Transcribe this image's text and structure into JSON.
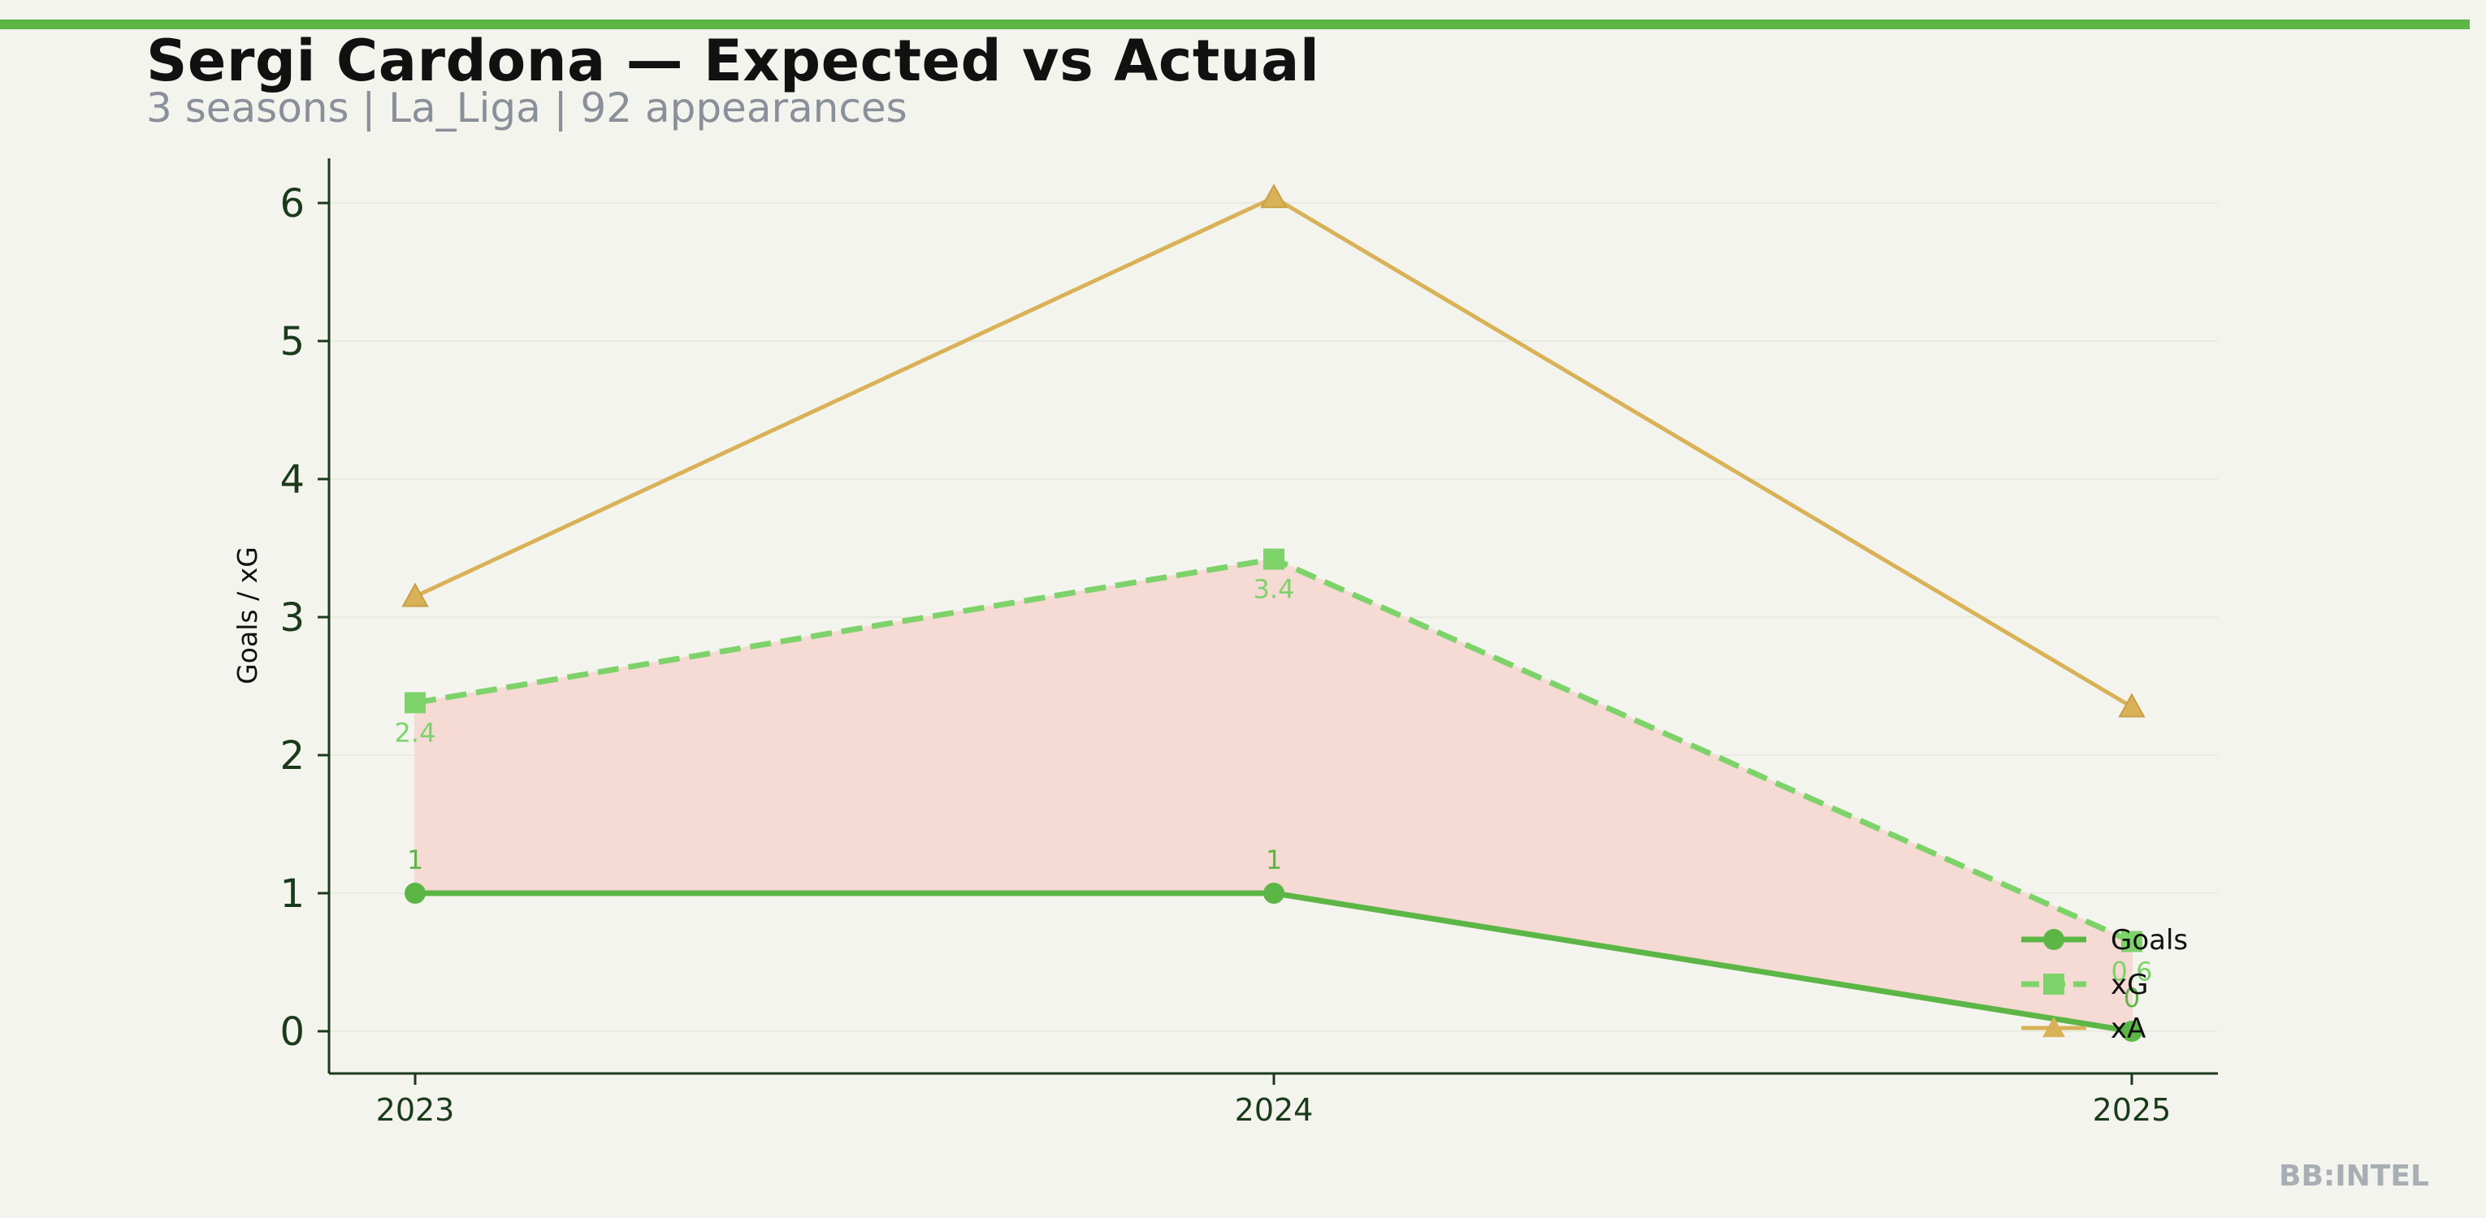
{
  "header": {
    "title": "Sergi Cardona — Expected vs Actual",
    "subtitle": "3 seasons | La_Liga | 92 appearances"
  },
  "branding": {
    "mark": "BB:INTEL"
  },
  "colors": {
    "background": "#f4f4ee",
    "accent_bar": "#5cb646",
    "goals": "#5cb646",
    "xg": "#7dd36a",
    "xa": "#d9b257",
    "gap_fill": "#f6dad4",
    "axis": "#1b3a1b"
  },
  "chart_data": {
    "type": "line",
    "title": "",
    "xlabel": "",
    "ylabel": "Goals / xG",
    "x": [
      "2023",
      "2024",
      "2025"
    ],
    "ylim": [
      -0.3,
      6.3
    ],
    "yticks": [
      "0",
      "1",
      "2",
      "3",
      "4",
      "5",
      "6"
    ],
    "series": [
      {
        "name": "Goals",
        "values": [
          1,
          1,
          0
        ],
        "labels": [
          "1",
          "1",
          "0"
        ],
        "marker": "circle",
        "style": "solid"
      },
      {
        "name": "xG",
        "values": [
          2.38,
          3.42,
          0.65
        ],
        "labels": [
          "2.4",
          "3.4",
          "0.6"
        ],
        "marker": "square",
        "style": "dashed"
      },
      {
        "name": "xA",
        "values": [
          3.15,
          6.04,
          2.35
        ],
        "marker": "triangle",
        "style": "solid"
      }
    ],
    "shaded_region": "between Goals and xG",
    "grid": "horizontal faint",
    "legend": "bottom-right"
  }
}
